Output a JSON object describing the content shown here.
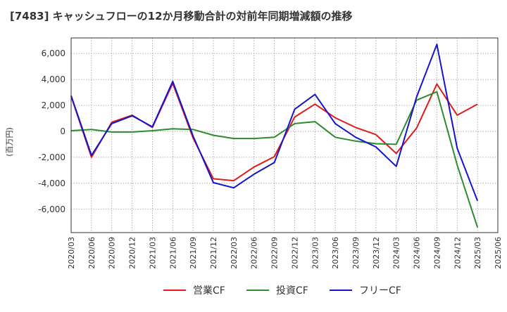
{
  "chart_data": {
    "type": "line",
    "title": "[7483]  キャッシュフローの12か月移動合計の対前年同期増減額の推移",
    "ylabel": "(百万円)",
    "xlabel": "",
    "ylim": [
      -7800,
      7200
    ],
    "yticks": [
      -6000,
      -4000,
      -2000,
      0,
      2000,
      4000,
      6000
    ],
    "ytick_labels": [
      "-6,000",
      "-4,000",
      "-2,000",
      "0",
      "2,000",
      "4,000",
      "6,000"
    ],
    "x_labels": [
      "2020/03",
      "2020/06",
      "2020/09",
      "2020/12",
      "2021/03",
      "2021/06",
      "2021/09",
      "2021/12",
      "2022/03",
      "2022/06",
      "2022/09",
      "2022/12",
      "2023/03",
      "2023/06",
      "2023/09",
      "2023/12",
      "2024/03",
      "2024/06",
      "2024/09",
      "2024/12",
      "2025/03",
      "2025/06"
    ],
    "grid": true,
    "legend_position": "bottom",
    "series": [
      {
        "name": "営業CF",
        "color": "#dd1c1c",
        "values": [
          2700,
          -2000,
          700,
          1250,
          300,
          3700,
          -500,
          -3650,
          -3800,
          -2750,
          -1950,
          1100,
          2100,
          1050,
          300,
          -250,
          -1700,
          250,
          3650,
          1250,
          2100,
          null
        ]
      },
      {
        "name": "投資CF",
        "color": "#2e8b2e",
        "values": [
          50,
          150,
          -50,
          -50,
          50,
          200,
          150,
          -300,
          -550,
          -550,
          -450,
          600,
          750,
          -450,
          -750,
          -950,
          -1000,
          2400,
          3050,
          -2600,
          -7400,
          null
        ]
      },
      {
        "name": "フリーCF",
        "color": "#1414cc",
        "values": [
          2750,
          -1850,
          600,
          1200,
          350,
          3850,
          -350,
          -3950,
          -4350,
          -3300,
          -2400,
          1700,
          2850,
          600,
          -450,
          -1200,
          -2700,
          2650,
          6700,
          -1300,
          -5350,
          null
        ]
      }
    ]
  }
}
